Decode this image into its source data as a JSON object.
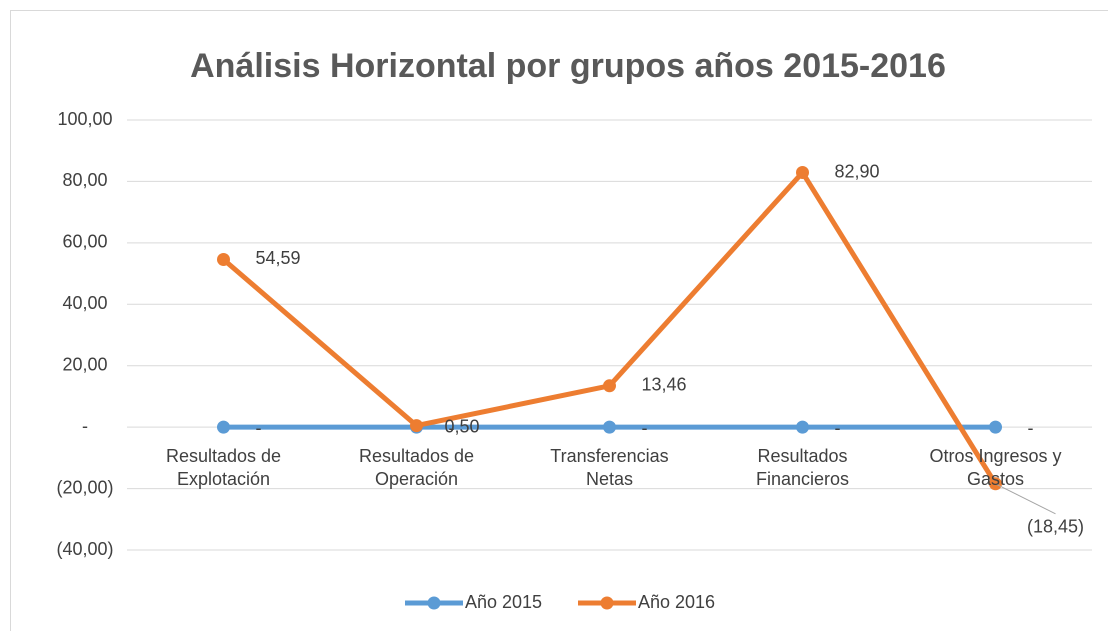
{
  "chart_data": {
    "type": "line",
    "title": "Análisis Horizontal por grupos años 2015-2016",
    "categories": [
      "Resultados de Explotación",
      "Resultados de Operación",
      "Transferencias Netas",
      "Resultados Financieros",
      "Otros Ingresos y Gastos"
    ],
    "series": [
      {
        "name": "Año 2015",
        "color": "#5b9bd5",
        "values": [
          0,
          0,
          0,
          0,
          0
        ],
        "value_labels": [
          "-",
          "-",
          "-",
          "-",
          "-"
        ]
      },
      {
        "name": "Año 2016",
        "color": "#ed7d31",
        "values": [
          54.59,
          0.5,
          13.46,
          82.9,
          -18.45
        ],
        "value_labels": [
          "54,59",
          "0,50",
          "13,46",
          "82,90",
          "(18,45)"
        ]
      }
    ],
    "ylim": [
      -40,
      100
    ],
    "yticks": [
      {
        "value": -40,
        "label": "(40,00)"
      },
      {
        "value": -20,
        "label": "(20,00)"
      },
      {
        "value": 0,
        "label": "-"
      },
      {
        "value": 20,
        "label": "20,00"
      },
      {
        "value": 40,
        "label": "40,00"
      },
      {
        "value": 60,
        "label": "60,00"
      },
      {
        "value": 80,
        "label": "80,00"
      },
      {
        "value": 100,
        "label": "100,00"
      }
    ],
    "grid": true,
    "legend": "bottom"
  }
}
